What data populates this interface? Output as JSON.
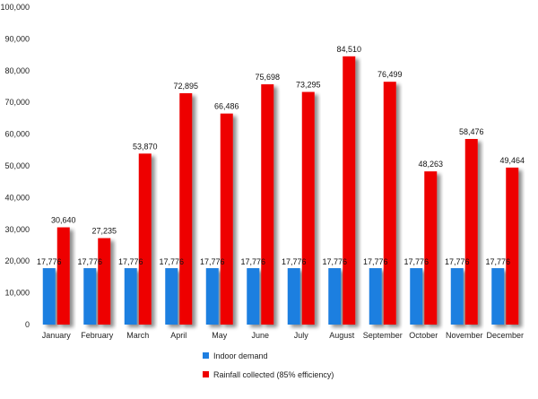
{
  "chart_data": {
    "type": "bar",
    "categories": [
      "January",
      "February",
      "March",
      "April",
      "May",
      "June",
      "July",
      "August",
      "September",
      "October",
      "November",
      "December"
    ],
    "series": [
      {
        "name": "Indoor demand",
        "color": "#1f7fe0",
        "values": [
          17776,
          17776,
          17776,
          17776,
          17776,
          17776,
          17776,
          17776,
          17776,
          17776,
          17776,
          17776
        ]
      },
      {
        "name": "Rainfall collected (85% efficiency)",
        "color": "#ee0000",
        "values": [
          30640,
          27235,
          53870,
          72895,
          66486,
          75698,
          73295,
          84510,
          76499,
          48263,
          58476,
          49464
        ]
      }
    ],
    "data_labels": {
      "demand": [
        "17,776",
        "17,776",
        "17,776",
        "17,776",
        "17,776",
        "17,776",
        "17,776",
        "17,776",
        "17,776",
        "17,776",
        "17,776",
        "17,776"
      ],
      "rain": [
        "30,640",
        "27,235",
        "53,870",
        "72,895",
        "66,486",
        "75,698",
        "73,295",
        "84,510",
        "76,499",
        "48,263",
        "58,476",
        "49,464"
      ]
    },
    "y_ticks": [
      {
        "value": 0,
        "label": "0"
      },
      {
        "value": 10000,
        "label": "10,000"
      },
      {
        "value": 20000,
        "label": "20,000"
      },
      {
        "value": 30000,
        "label": "30,000"
      },
      {
        "value": 40000,
        "label": "40,000"
      },
      {
        "value": 50000,
        "label": "50,000"
      },
      {
        "value": 60000,
        "label": "60,000"
      },
      {
        "value": 70000,
        "label": "70,000"
      },
      {
        "value": 80000,
        "label": "80,000"
      },
      {
        "value": 90000,
        "label": "90,000"
      },
      {
        "value": 100000,
        "label": "100,000"
      }
    ],
    "ylim": [
      0,
      100000
    ],
    "grid": false,
    "legend_position": "bottom"
  }
}
